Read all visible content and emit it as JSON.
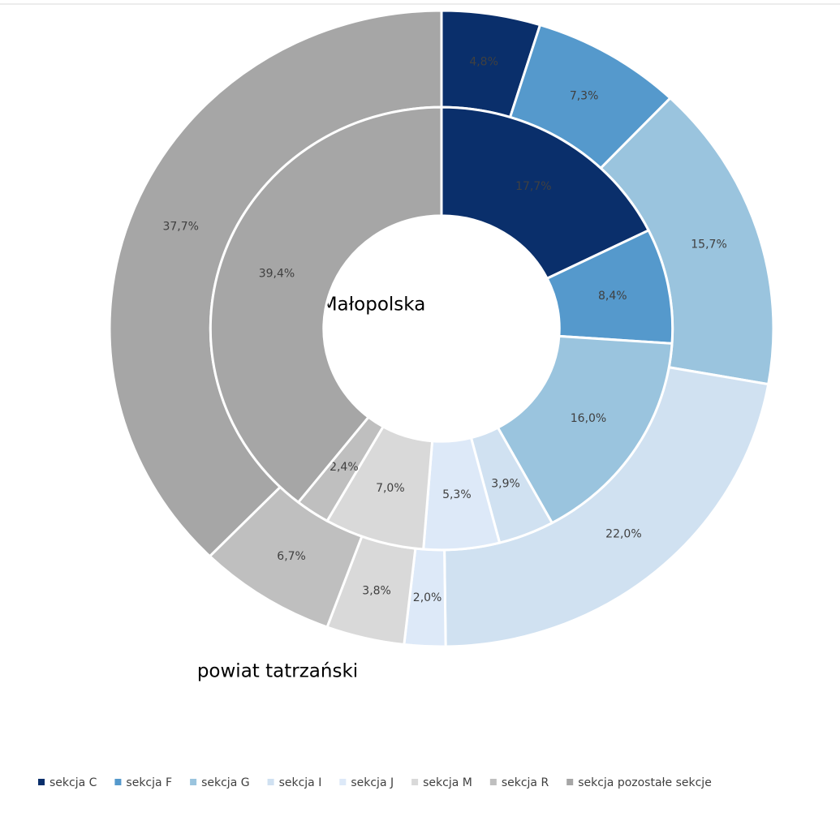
{
  "chart_data": {
    "type": "doughnut",
    "categories": [
      "sekcja C",
      "sekcja F",
      "sekcja G",
      "sekcja I",
      "sekcja J",
      "sekcja M",
      "sekcja R",
      "sekcja pozostałe sekcje"
    ],
    "colors": [
      "#0a2f6b",
      "#5599cc",
      "#9ac4de",
      "#d0e1f1",
      "#dde9f8",
      "#d9d9d9",
      "#bfbfbf",
      "#a6a6a6"
    ],
    "series": [
      {
        "name": "powiat tatrzański",
        "values": [
          4.8,
          7.3,
          15.7,
          22.0,
          2.0,
          3.8,
          6.7,
          37.7
        ],
        "value_labels": [
          "4,8%",
          "7,3%",
          "15,7%",
          "22,0%",
          "2,0%",
          "3,8%",
          "6,7%",
          "37,7%"
        ]
      },
      {
        "name": "Małopolska",
        "values": [
          17.7,
          8.4,
          16.0,
          3.9,
          5.3,
          7.0,
          2.4,
          39.4
        ],
        "value_labels": [
          "17,7%",
          "8,4%",
          "16,0%",
          "3,9%",
          "5,3%",
          "7,0%",
          "2,4%",
          "39,4%"
        ]
      }
    ],
    "legend": "bottom"
  }
}
